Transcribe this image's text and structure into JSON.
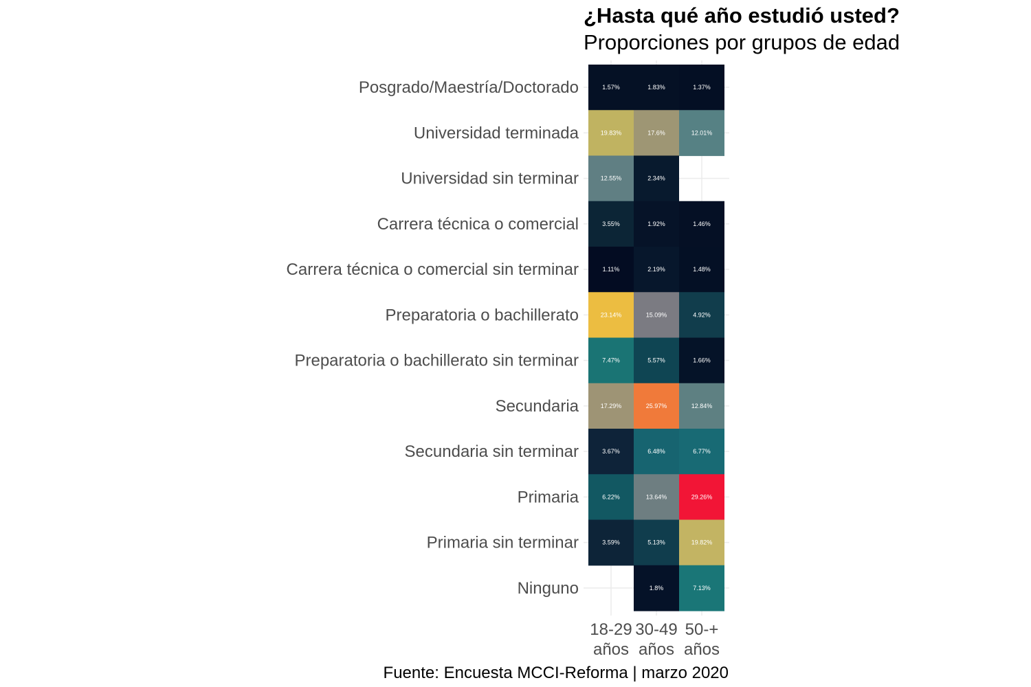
{
  "chart_data": {
    "type": "heatmap",
    "title": "¿Hasta qué año estudió usted?",
    "subtitle": "Proporciones por grupos de edad",
    "caption": "Fuente: Encuesta MCCI-Reforma | marzo 2020",
    "x_categories": [
      "18-29 años",
      "30-49 años",
      "50-+ años"
    ],
    "x_tick_lines": [
      [
        "18-29",
        "años"
      ],
      [
        "30-49",
        "años"
      ],
      [
        "50-+",
        "años"
      ]
    ],
    "y_categories": [
      "Posgrado/Maestría/Doctorado",
      "Universidad terminada",
      "Universidad sin terminar",
      "Carrera técnica o comercial",
      "Carrera técnica o comercial sin terminar",
      "Preparatoria o bachillerato",
      "Preparatoria o bachillerato sin terminar",
      "Secundaria",
      "Secundaria sin terminar",
      "Primaria",
      "Primaria sin terminar",
      "Ninguno"
    ],
    "values": [
      [
        1.57,
        1.83,
        1.37
      ],
      [
        19.83,
        17.6,
        12.01
      ],
      [
        12.55,
        2.34,
        null
      ],
      [
        3.55,
        1.92,
        1.46
      ],
      [
        1.11,
        2.19,
        1.48
      ],
      [
        23.14,
        15.09,
        4.92
      ],
      [
        7.47,
        5.57,
        1.66
      ],
      [
        17.29,
        25.97,
        12.84
      ],
      [
        3.67,
        6.48,
        6.77
      ],
      [
        6.22,
        13.64,
        29.26
      ],
      [
        3.59,
        5.13,
        19.82
      ],
      [
        null,
        1.8,
        7.13
      ]
    ],
    "labels": [
      [
        "1.57%",
        "1.83%",
        "1.37%"
      ],
      [
        "19.83%",
        "17.6%",
        "12.01%"
      ],
      [
        "12.55%",
        "2.34%",
        null
      ],
      [
        "3.55%",
        "1.92%",
        "1.46%"
      ],
      [
        "1.11%",
        "2.19%",
        "1.48%"
      ],
      [
        "23.14%",
        "15.09%",
        "4.92%"
      ],
      [
        "7.47%",
        "5.57%",
        "1.66%"
      ],
      [
        "17.29%",
        "25.97%",
        "12.84%"
      ],
      [
        "3.67%",
        "6.48%",
        "6.77%"
      ],
      [
        "6.22%",
        "13.64%",
        "29.26%"
      ],
      [
        "3.59%",
        "5.13%",
        "19.82%"
      ],
      [
        null,
        "1.8%",
        "7.13%"
      ]
    ],
    "colors": [
      [
        "#051125",
        "#051125",
        "#040f24"
      ],
      [
        "#c0b361",
        "#9e9674",
        "#568184"
      ],
      [
        "#607f83",
        "#081a2e",
        null
      ],
      [
        "#0c2536",
        "#061328",
        "#051025"
      ],
      [
        "#030c22",
        "#07172c",
        "#041025"
      ],
      [
        "#ecbd41",
        "#7b7b82",
        "#113d4c"
      ],
      [
        "#1a7474",
        "#0f4553",
        "#051328"
      ],
      [
        "#9e9475",
        "#f07a3a",
        "#5e8082"
      ],
      [
        "#0e2339",
        "#176470",
        "#186a74"
      ],
      [
        "#125862",
        "#6e7e81",
        "#f21536"
      ],
      [
        "#0d2438",
        "#103d4d",
        "#c3b463"
      ],
      [
        null,
        "#051228",
        "#1a7677"
      ]
    ],
    "grid": true,
    "legend": "none"
  }
}
